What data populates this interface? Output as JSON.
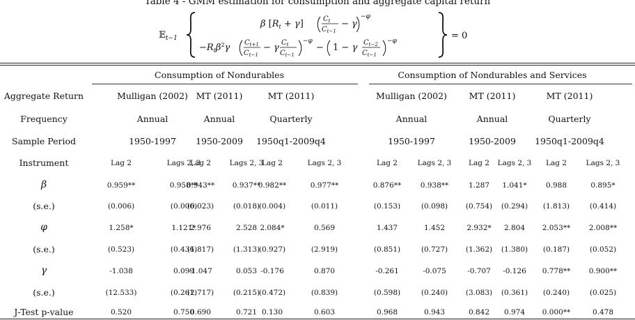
{
  "table": {
    "caption": "Table 4 - GMM estimation for consumption and aggregate capital return",
    "equation": {
      "lhs": "𝔼t−1",
      "line1": "β [Rt + γ] (Ct/Ct−1 − γ)^−φ",
      "line2": "−Rt β² γ (Ct+1/Ct−1 − γ Ct/Ct−1)^−φ − (1 − γ Ct−2/Ct−1)^−φ",
      "rhs": "= 0"
    },
    "groups": [
      "Consumption of Nondurables",
      "Consumption of Nondurables and Services"
    ],
    "header_rows": [
      {
        "label": "Aggregate Return",
        "cells": [
          "Mulligan (2002)",
          "MT (2011)",
          "MT (2011)",
          "Mulligan (2002)",
          "MT (2011)",
          "MT (2011)"
        ]
      },
      {
        "label": "Frequency",
        "cells": [
          "Annual",
          "Annual",
          "Quarterly",
          "Annual",
          "Annual",
          "Quarterly"
        ]
      },
      {
        "label": "Sample Period",
        "cells": [
          "1950-1997",
          "1950-2009",
          "1950q1-2009q4",
          "1950-1997",
          "1950-2009",
          "1950q1-2009q4"
        ]
      }
    ],
    "instrument": {
      "label": "Instrument",
      "cells": [
        "Lag 2",
        "Lags 2, 3",
        "Lag 2",
        "Lags 2, 3",
        "Lag 2",
        "Lags 2, 3",
        "Lag 2",
        "Lags 2, 3",
        "Lag 2",
        "Lags 2, 3",
        "Lag 2",
        "Lags 2, 3"
      ]
    },
    "rows": [
      {
        "label": "β",
        "symbol": true,
        "cells": [
          "0.959**",
          "0.958**",
          "0.943**",
          "0.937**",
          "0.982**",
          "0.977**",
          "0.876**",
          "0.938**",
          "1.287",
          "1.041*",
          "0.988",
          "0.895*"
        ]
      },
      {
        "label": "(s.e.)",
        "symbol": false,
        "cells": [
          "(0.006)",
          "(0.006)",
          "(0.023)",
          "(0.018)",
          "(0.004)",
          "(0.011)",
          "(0.153)",
          "(0.098)",
          "(0.754)",
          "(0.294)",
          "(1.813)",
          "(0.414)"
        ]
      },
      {
        "label": "φ",
        "symbol": true,
        "cells": [
          "1.258*",
          "1.121*",
          "2.976",
          "2.528",
          "2.084*",
          "0.569",
          "1.437",
          "1.452",
          "2.932*",
          "2.804",
          "2.053**",
          "2.008**"
        ]
      },
      {
        "label": "(s.e.)",
        "symbol": false,
        "cells": [
          "(0.523)",
          "(0.436)",
          "(1.817)",
          "(1.313)",
          "(0.927)",
          "(2.919)",
          "(0.851)",
          "(0.727)",
          "(1.362)",
          "(1.380)",
          "(0.187)",
          "(0.052)"
        ]
      },
      {
        "label": "γ",
        "symbol": true,
        "cells": [
          "-1.038",
          "0.099",
          "-1.047",
          "0.053",
          "-0.176",
          "0.870",
          "-0.261",
          "-0.075",
          "-0.707",
          "-0.126",
          "0.778**",
          "0.900**"
        ]
      },
      {
        "label": "(s.e.)",
        "symbol": false,
        "cells": [
          "(12.533)",
          "(0.261)",
          "(2.717)",
          "(0.215)",
          "(0.472)",
          "(0.839)",
          "(0.598)",
          "(0.240)",
          "(3.083)",
          "(0.361)",
          "(0.240)",
          "(0.025)"
        ]
      },
      {
        "label": "J-Test p-value",
        "symbol": false,
        "cells": [
          "0.520",
          "0.750",
          "0.690",
          "0.721",
          "0.130",
          "0.603",
          "0.968",
          "0.943",
          "0.842",
          "0.974",
          "0.000**",
          "0.478"
        ]
      }
    ]
  }
}
